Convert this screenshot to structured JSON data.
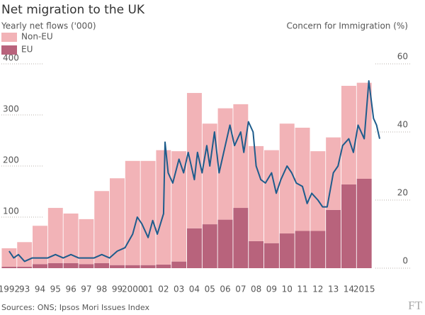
{
  "chart_data": {
    "type": "bar",
    "title": "Net migration to the UK",
    "y_label": "Yearly net flows ('000)",
    "y2_label": "Concern for Immigration (%)",
    "source": "Sources: ONS; Ipsos Mori Issues Index",
    "logo": "FT",
    "stacked": true,
    "grid": true,
    "legend": "top-left",
    "categories": [
      "1992",
      "93",
      "94",
      "95",
      "96",
      "97",
      "98",
      "99",
      "2000",
      "01",
      "02",
      "03",
      "04",
      "05",
      "06",
      "07",
      "08",
      "09",
      "10",
      "11",
      "12",
      "13",
      "14",
      "2015"
    ],
    "xlim": [
      1991.5,
      2016
    ],
    "ylim": [
      0,
      400
    ],
    "yticks": [
      100,
      200,
      300,
      400
    ],
    "y2lim": [
      0,
      60
    ],
    "y2ticks": [
      0,
      20,
      40,
      60
    ],
    "series": [
      {
        "name": "Non-EU",
        "color": "#f2b3b7",
        "values": [
          36,
          48,
          75,
          108,
          97,
          88,
          141,
          170,
          204,
          204,
          224,
          216,
          265,
          197,
          218,
          203,
          186,
          182,
          215,
          202,
          156,
          142,
          193,
          188
        ]
      },
      {
        "name": "EU",
        "color": "#b8637c",
        "values": [
          3,
          3,
          8,
          10,
          10,
          8,
          10,
          6,
          6,
          6,
          7,
          13,
          78,
          86,
          95,
          118,
          53,
          49,
          68,
          73,
          73,
          114,
          164,
          175
        ]
      },
      {
        "type": "line",
        "axis": "y2",
        "color": "#1e5c8c",
        "x": [
          1992.0,
          1992.3,
          1992.6,
          1993.0,
          1993.5,
          1994.0,
          1994.5,
          1995.0,
          1995.5,
          1996.0,
          1996.5,
          1997.0,
          1997.5,
          1998.0,
          1998.5,
          1999.0,
          1999.5,
          2000.0,
          2000.3,
          2000.6,
          2001.0,
          2001.3,
          2001.6,
          2002.0,
          2002.1,
          2002.3,
          2002.6,
          2003.0,
          2003.3,
          2003.6,
          2004.0,
          2004.2,
          2004.5,
          2004.8,
          2005.0,
          2005.3,
          2005.6,
          2006.0,
          2006.3,
          2006.6,
          2007.0,
          2007.2,
          2007.5,
          2007.8,
          2008.0,
          2008.3,
          2008.6,
          2009.0,
          2009.3,
          2009.6,
          2010.0,
          2010.3,
          2010.6,
          2011.0,
          2011.3,
          2011.6,
          2012.0,
          2012.3,
          2012.6,
          2013.0,
          2013.3,
          2013.6,
          2014.0,
          2014.3,
          2014.6,
          2015.0,
          2015.3,
          2015.6,
          2015.8,
          2016.0
        ],
        "values": [
          5,
          3,
          4,
          2,
          3,
          3,
          3,
          4,
          3,
          4,
          3,
          3,
          3,
          4,
          3,
          5,
          6,
          10,
          15,
          13,
          9,
          14,
          10,
          16,
          37,
          28,
          25,
          32,
          28,
          34,
          26,
          34,
          28,
          36,
          30,
          40,
          28,
          36,
          42,
          36,
          40,
          34,
          43,
          40,
          30,
          26,
          25,
          28,
          22,
          26,
          30,
          28,
          25,
          24,
          19,
          22,
          20,
          18,
          18,
          28,
          30,
          36,
          38,
          34,
          42,
          38,
          55,
          44,
          42,
          38
        ]
      }
    ]
  }
}
